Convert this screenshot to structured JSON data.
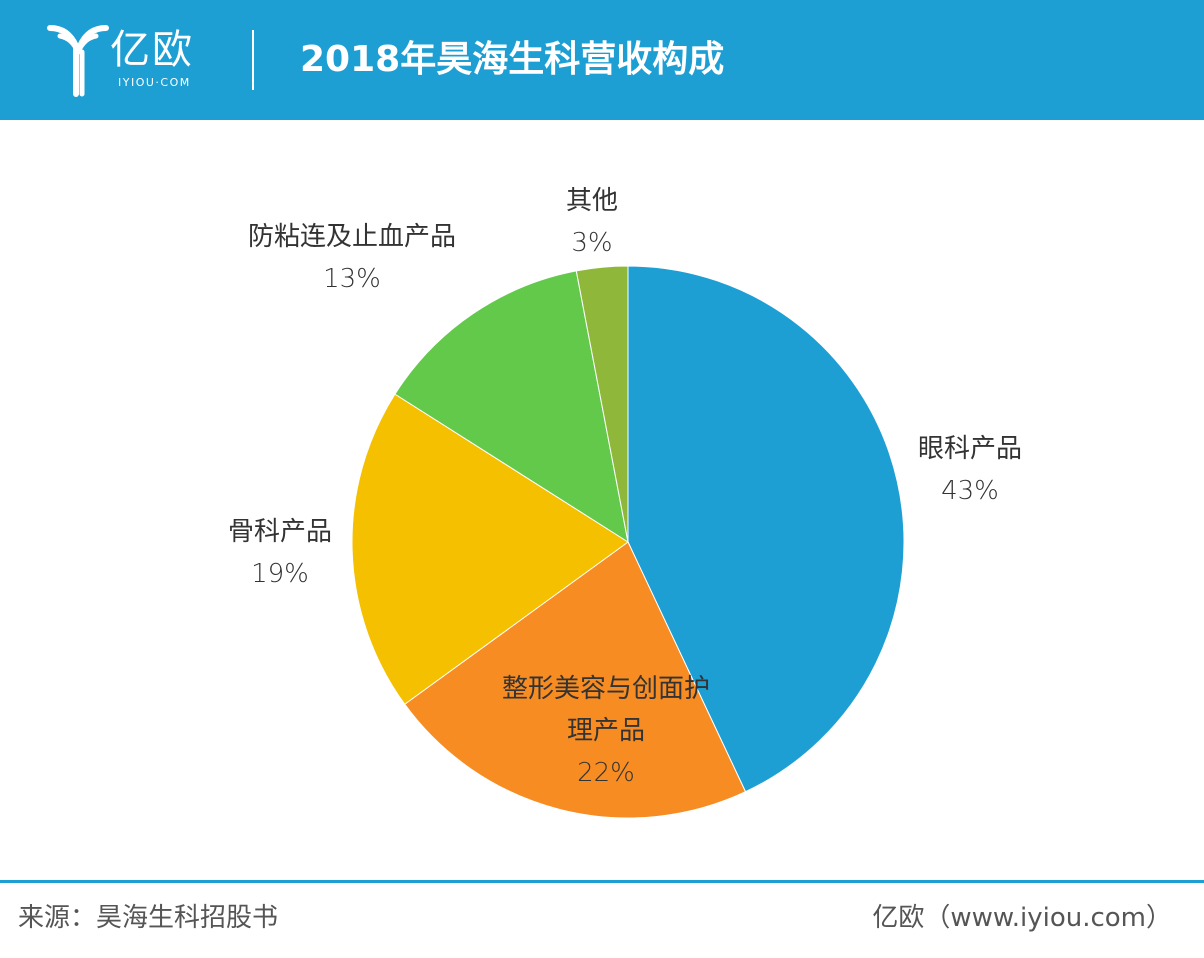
{
  "header": {
    "logo_text": "亿欧",
    "logo_subtext": "IYIOU·COM",
    "title": "2018年昊海生科营收构成",
    "colors": {
      "banner": "#1e9fd4",
      "text": "#ffffff"
    }
  },
  "chart_data": {
    "type": "pie",
    "title": "2018年昊海生科营收构成",
    "slices": [
      {
        "label": "眼科产品",
        "value": 43,
        "display": "43%",
        "color": "#1e9fd4"
      },
      {
        "label": "整形美容与创面护理产品",
        "value": 22,
        "display": "22%",
        "color": "#f68c22"
      },
      {
        "label": "骨科产品",
        "value": 19,
        "display": "19%",
        "color": "#f4c000"
      },
      {
        "label": "防粘连及止血产品",
        "value": 13,
        "display": "13%",
        "color": "#62c94a"
      },
      {
        "label": "其他",
        "value": 3,
        "display": "3%",
        "color": "#8fb83a"
      }
    ],
    "start": "12 o'clock",
    "direction": "clockwise",
    "legend": "none (labels beside slices)"
  },
  "labels": {
    "ophthalmic": {
      "name": "眼科产品",
      "pct": "43%"
    },
    "cosmetic": {
      "name_line1": "整形美容与创面护",
      "name_line2": "理产品",
      "pct": "22%"
    },
    "orthopedic": {
      "name": "骨科产品",
      "pct": "19%"
    },
    "antiadhesion": {
      "name": "防粘连及止血产品",
      "pct": "13%"
    },
    "other": {
      "name": "其他",
      "pct": "3%"
    }
  },
  "footer": {
    "source": "来源：昊海生科招股书",
    "brand": "亿欧（www.iyiou.com）"
  }
}
